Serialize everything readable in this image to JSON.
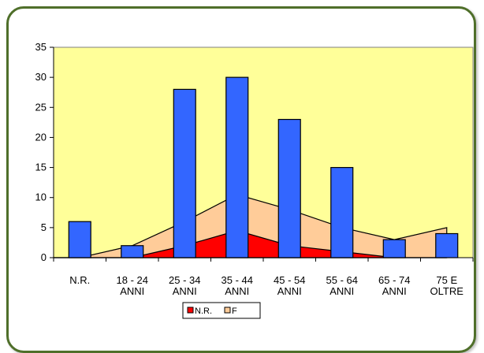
{
  "chart_data": {
    "type": "bar",
    "categories": [
      "N.R.",
      "18 - 24 ANNI",
      "25 - 34 ANNI",
      "35 - 44 ANNI",
      "45 - 54 ANNI",
      "55 - 64 ANNI",
      "65 - 74 ANNI",
      "75 E OLTRE"
    ],
    "category_labels": [
      [
        "N.R."
      ],
      [
        "18 - 24",
        "ANNI"
      ],
      [
        "25 - 34",
        "ANNI"
      ],
      [
        "35 - 44",
        "ANNI"
      ],
      [
        "45 - 54",
        "ANNI"
      ],
      [
        "55 - 64",
        "ANNI"
      ],
      [
        "65 - 74",
        "ANNI"
      ],
      [
        "75 E",
        "OLTRE"
      ]
    ],
    "bars": {
      "name": "",
      "color": "#3366ff",
      "values": [
        6,
        2,
        28,
        30,
        23,
        15,
        3,
        4
      ]
    },
    "areas": [
      {
        "name": "F",
        "color": "#ffcc99",
        "values": [
          0,
          2,
          6,
          10.5,
          8,
          5,
          3,
          5
        ]
      },
      {
        "name": "N.R.",
        "color": "#ff0000",
        "values": [
          0,
          0,
          2,
          4.5,
          2,
          1,
          0,
          0
        ]
      }
    ],
    "ylim": [
      0,
      35
    ],
    "yticks": [
      0,
      5,
      10,
      15,
      20,
      25,
      30,
      35
    ],
    "plot_background": "#ffff99",
    "grid": false,
    "legend": {
      "position": "bottom",
      "items": [
        {
          "label": "N.R.",
          "color": "#ff0000"
        },
        {
          "label": "F",
          "color": "#ffcc99"
        }
      ]
    }
  }
}
